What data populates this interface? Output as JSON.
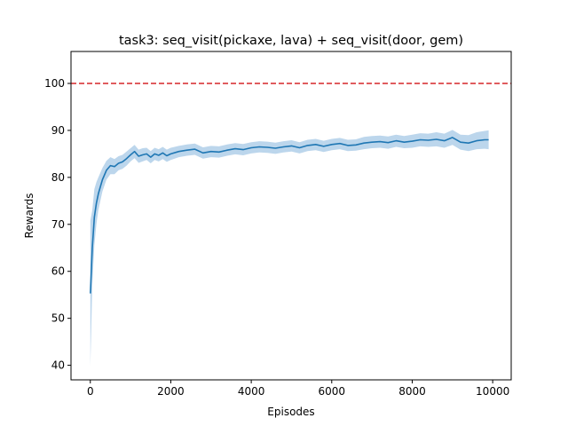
{
  "chart_data": {
    "type": "line",
    "title": "task3: seq_visit(pickaxe, lava) + seq_visit(door, gem)",
    "xlabel": "Episodes",
    "ylabel": "Rewards",
    "xlim": [
      -480,
      10460
    ],
    "ylim": [
      36.9,
      106.8
    ],
    "xticks": [
      0,
      2000,
      4000,
      6000,
      8000,
      10000
    ],
    "yticks": [
      40,
      50,
      60,
      70,
      80,
      90,
      100
    ],
    "xtick_labels": [
      "0",
      "2000",
      "4000",
      "6000",
      "8000",
      "10000"
    ],
    "ytick_labels": [
      "40",
      "50",
      "60",
      "70",
      "80",
      "90",
      "100"
    ],
    "grid": false,
    "series": [
      {
        "kind": "mean_with_band",
        "color": "#1f77b4",
        "band_color": "#a6c8e6",
        "x": [
          0,
          50,
          100,
          150,
          200,
          250,
          300,
          400,
          500,
          600,
          700,
          800,
          900,
          1000,
          1100,
          1200,
          1300,
          1400,
          1500,
          1600,
          1700,
          1800,
          1900,
          2000,
          2200,
          2400,
          2600,
          2800,
          3000,
          3200,
          3400,
          3600,
          3800,
          4000,
          4200,
          4400,
          4600,
          4800,
          5000,
          5200,
          5400,
          5600,
          5800,
          6000,
          6200,
          6400,
          6600,
          6800,
          7000,
          7200,
          7400,
          7600,
          7800,
          8000,
          8200,
          8400,
          8600,
          8800,
          9000,
          9200,
          9400,
          9600,
          9800,
          9900
        ],
        "y": [
          55.3,
          65.0,
          71.5,
          74.5,
          76.5,
          78.0,
          79.5,
          81.5,
          82.5,
          82.3,
          83.0,
          83.3,
          84.0,
          84.8,
          85.5,
          84.5,
          84.8,
          85.0,
          84.3,
          85.0,
          84.7,
          85.2,
          84.6,
          85.0,
          85.5,
          85.8,
          86.0,
          85.2,
          85.5,
          85.4,
          85.8,
          86.1,
          85.9,
          86.3,
          86.5,
          86.4,
          86.2,
          86.5,
          86.7,
          86.3,
          86.8,
          87.0,
          86.6,
          87.0,
          87.2,
          86.8,
          86.9,
          87.3,
          87.5,
          87.6,
          87.4,
          87.8,
          87.5,
          87.7,
          88.0,
          87.9,
          88.1,
          87.8,
          88.5,
          87.5,
          87.3,
          87.8,
          88.0,
          88.0
        ],
        "band_halfwidth": [
          15.5,
          8.0,
          6.0,
          4.5,
          3.5,
          3.0,
          2.5,
          2.0,
          1.8,
          1.6,
          1.5,
          1.5,
          1.5,
          1.4,
          1.4,
          1.4,
          1.4,
          1.3,
          1.3,
          1.3,
          1.3,
          1.3,
          1.3,
          1.3,
          1.2,
          1.2,
          1.2,
          1.2,
          1.2,
          1.2,
          1.2,
          1.2,
          1.2,
          1.2,
          1.2,
          1.2,
          1.2,
          1.2,
          1.2,
          1.2,
          1.2,
          1.2,
          1.2,
          1.2,
          1.2,
          1.2,
          1.2,
          1.3,
          1.3,
          1.3,
          1.3,
          1.3,
          1.3,
          1.4,
          1.4,
          1.4,
          1.5,
          1.5,
          1.6,
          1.6,
          1.7,
          1.8,
          1.9,
          2.0
        ]
      },
      {
        "kind": "reference_line",
        "y": 100,
        "color": "#d62728",
        "style": "dashed"
      }
    ]
  }
}
